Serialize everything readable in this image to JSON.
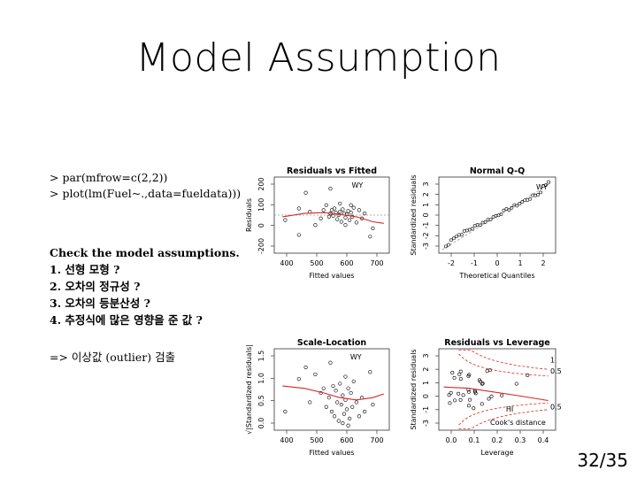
{
  "slide": {
    "title": "Model Assumption",
    "code_lines": [
      "> par(mfrow=c(2,2))",
      "> plot(lm(Fuel~.,data=fueldata)))"
    ],
    "list_heading": "Check the model assumptions.",
    "list_items": [
      "1. 선형 모형 ?",
      "2. 오차의 정규성 ?",
      "3. 오차의 등분산성 ?",
      "4. 추정식에 많은 영향을 준 값 ?"
    ],
    "note": "=> 이상값 (outlier) 검출",
    "page_number": "32/35"
  },
  "chart_data": [
    {
      "type": "scatter",
      "title": "Residuals vs Fitted",
      "xlabel": "Fitted values",
      "ylabel": "Residuals",
      "xticks": [
        "400",
        "500",
        "600",
        "700"
      ],
      "yticks": [
        "-200",
        "0",
        "100",
        "200"
      ],
      "xlim": [
        340,
        760
      ],
      "ylim": [
        -230,
        230
      ],
      "labels": [
        "WY"
      ],
      "points": [
        [
          380,
          -30
        ],
        [
          430,
          40
        ],
        [
          470,
          20
        ],
        [
          490,
          -60
        ],
        [
          510,
          -20
        ],
        [
          520,
          30
        ],
        [
          530,
          60
        ],
        [
          540,
          -10
        ],
        [
          545,
          10
        ],
        [
          550,
          30
        ],
        [
          555,
          -5
        ],
        [
          560,
          40
        ],
        [
          565,
          15
        ],
        [
          570,
          -25
        ],
        [
          575,
          0
        ],
        [
          580,
          20
        ],
        [
          585,
          -40
        ],
        [
          590,
          35
        ],
        [
          595,
          10
        ],
        [
          600,
          -15
        ],
        [
          605,
          5
        ],
        [
          610,
          25
        ],
        [
          615,
          -30
        ],
        [
          620,
          15
        ],
        [
          625,
          -10
        ],
        [
          630,
          45
        ],
        [
          640,
          -45
        ],
        [
          650,
          30
        ],
        [
          660,
          -20
        ],
        [
          670,
          10
        ],
        [
          690,
          -130
        ],
        [
          700,
          -80
        ],
        [
          430,
          -120
        ],
        [
          455,
          135
        ],
        [
          545,
          160
        ],
        [
          600,
          -60
        ],
        [
          620,
          60
        ],
        [
          580,
          70
        ]
      ],
      "smooth": [
        [
          370,
          -10
        ],
        [
          450,
          10
        ],
        [
          520,
          15
        ],
        [
          580,
          5
        ],
        [
          640,
          -10
        ],
        [
          700,
          -40
        ],
        [
          740,
          -50
        ]
      ]
    },
    {
      "type": "scatter",
      "title": "Normal Q-Q",
      "xlabel": "Theoretical Quantiles",
      "ylabel": "Standardized residuals",
      "xticks": [
        "-2",
        "-1",
        "0",
        "1",
        "2"
      ],
      "yticks": [
        "-3",
        "-2",
        "-1",
        "0",
        "1",
        "2",
        "3"
      ],
      "xlim": [
        -2.5,
        2.5
      ],
      "ylim": [
        -3.3,
        3.3
      ],
      "labels": [
        "WY"
      ]
    },
    {
      "type": "scatter",
      "title": "Scale-Location",
      "xlabel": "Fitted values",
      "ylabel": "√|Standardized residuals|",
      "xticks": [
        "400",
        "500",
        "600",
        "700"
      ],
      "yticks": [
        "0.0",
        "0.5",
        "1.0",
        "1.5"
      ],
      "xlim": [
        340,
        760
      ],
      "ylim": [
        0,
        1.75
      ],
      "labels": [
        "WY"
      ],
      "points": [
        [
          380,
          0.4
        ],
        [
          430,
          1.1
        ],
        [
          455,
          1.35
        ],
        [
          470,
          0.6
        ],
        [
          490,
          1.2
        ],
        [
          510,
          0.8
        ],
        [
          520,
          0.9
        ],
        [
          530,
          0.5
        ],
        [
          540,
          0.7
        ],
        [
          545,
          1.45
        ],
        [
          550,
          0.4
        ],
        [
          555,
          0.95
        ],
        [
          560,
          0.3
        ],
        [
          565,
          0.85
        ],
        [
          570,
          0.6
        ],
        [
          575,
          0.2
        ],
        [
          580,
          1.0
        ],
        [
          585,
          0.55
        ],
        [
          590,
          0.75
        ],
        [
          595,
          0.35
        ],
        [
          600,
          0.65
        ],
        [
          605,
          0.45
        ],
        [
          610,
          0.9
        ],
        [
          615,
          0.25
        ],
        [
          620,
          0.8
        ],
        [
          625,
          0.5
        ],
        [
          630,
          1.05
        ],
        [
          640,
          0.6
        ],
        [
          650,
          0.3
        ],
        [
          660,
          0.7
        ],
        [
          670,
          0.4
        ],
        [
          690,
          1.25
        ],
        [
          700,
          0.55
        ],
        [
          590,
          0.15
        ],
        [
          610,
          0.1
        ],
        [
          600,
          1.15
        ]
      ],
      "smooth": [
        [
          370,
          0.95
        ],
        [
          450,
          0.9
        ],
        [
          520,
          0.8
        ],
        [
          580,
          0.7
        ],
        [
          640,
          0.65
        ],
        [
          700,
          0.7
        ],
        [
          740,
          0.78
        ]
      ]
    },
    {
      "type": "scatter",
      "title": "Residuals vs Leverage",
      "xlabel": "Leverage",
      "ylabel": "Standardized residuals",
      "xticks": [
        "0.0",
        "0.1",
        "0.2",
        "0.3",
        "0.4"
      ],
      "yticks": [
        "-3",
        "-1",
        "0",
        "1",
        "2",
        "3"
      ],
      "xlim": [
        -0.02,
        0.45
      ],
      "ylim": [
        -3.3,
        3.3
      ],
      "labels": [
        "HI",
        "Cook's distance",
        "0.5",
        "1"
      ]
    }
  ]
}
